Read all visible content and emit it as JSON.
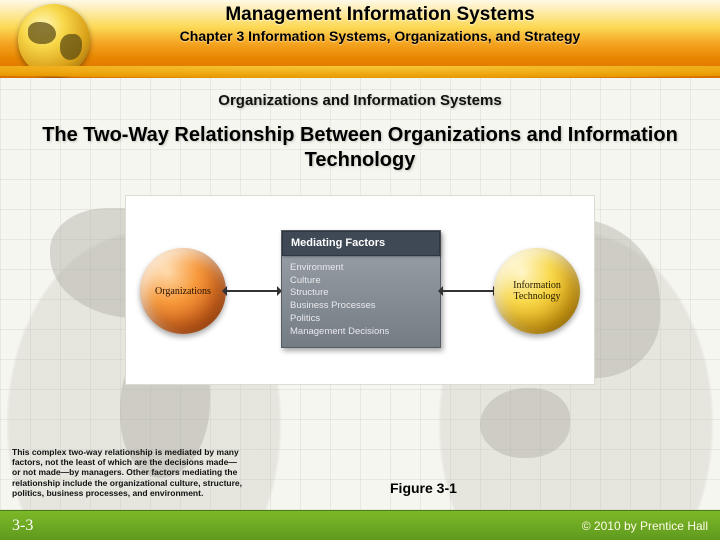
{
  "header": {
    "title": "Management Information Systems",
    "chapter": "Chapter 3 Information Systems, Organizations, and Strategy"
  },
  "section_heading": "Organizations and Information Systems",
  "slide_title": "The Two-Way Relationship Between Organizations and Information Technology",
  "diagram": {
    "left_sphere": "Organizations",
    "right_sphere": "Information Technology",
    "center_title": "Mediating Factors",
    "factors": [
      "Environment",
      "Culture",
      "Structure",
      "Business Processes",
      "Politics",
      "Management Decisions"
    ]
  },
  "caption": "This complex two-way relationship is mediated by many factors, not the least of which are the decisions made—or not made—by managers. Other factors mediating the relationship include the organizational culture, structure, politics, business processes, and environment.",
  "figure_label": "Figure 3-1",
  "footer": {
    "page": "3-3",
    "copyright": "© 2010 by Prentice Hall"
  },
  "colors": {
    "header_gradient": [
      "#fef9e8",
      "#fcd955",
      "#f5a623",
      "#e88500",
      "#d96f00"
    ],
    "left_sphere": [
      "#ffd9a8",
      "#f79a3c",
      "#d9641a",
      "#a83f08"
    ],
    "right_sphere": [
      "#fff6c8",
      "#f8d84a",
      "#e2a914",
      "#a87400"
    ],
    "center_box_bg": [
      "#9da4ab",
      "#747c84"
    ],
    "center_title_bg": "#3f4955",
    "footer_gradient": [
      "#7db828",
      "#5f9a1e"
    ]
  }
}
